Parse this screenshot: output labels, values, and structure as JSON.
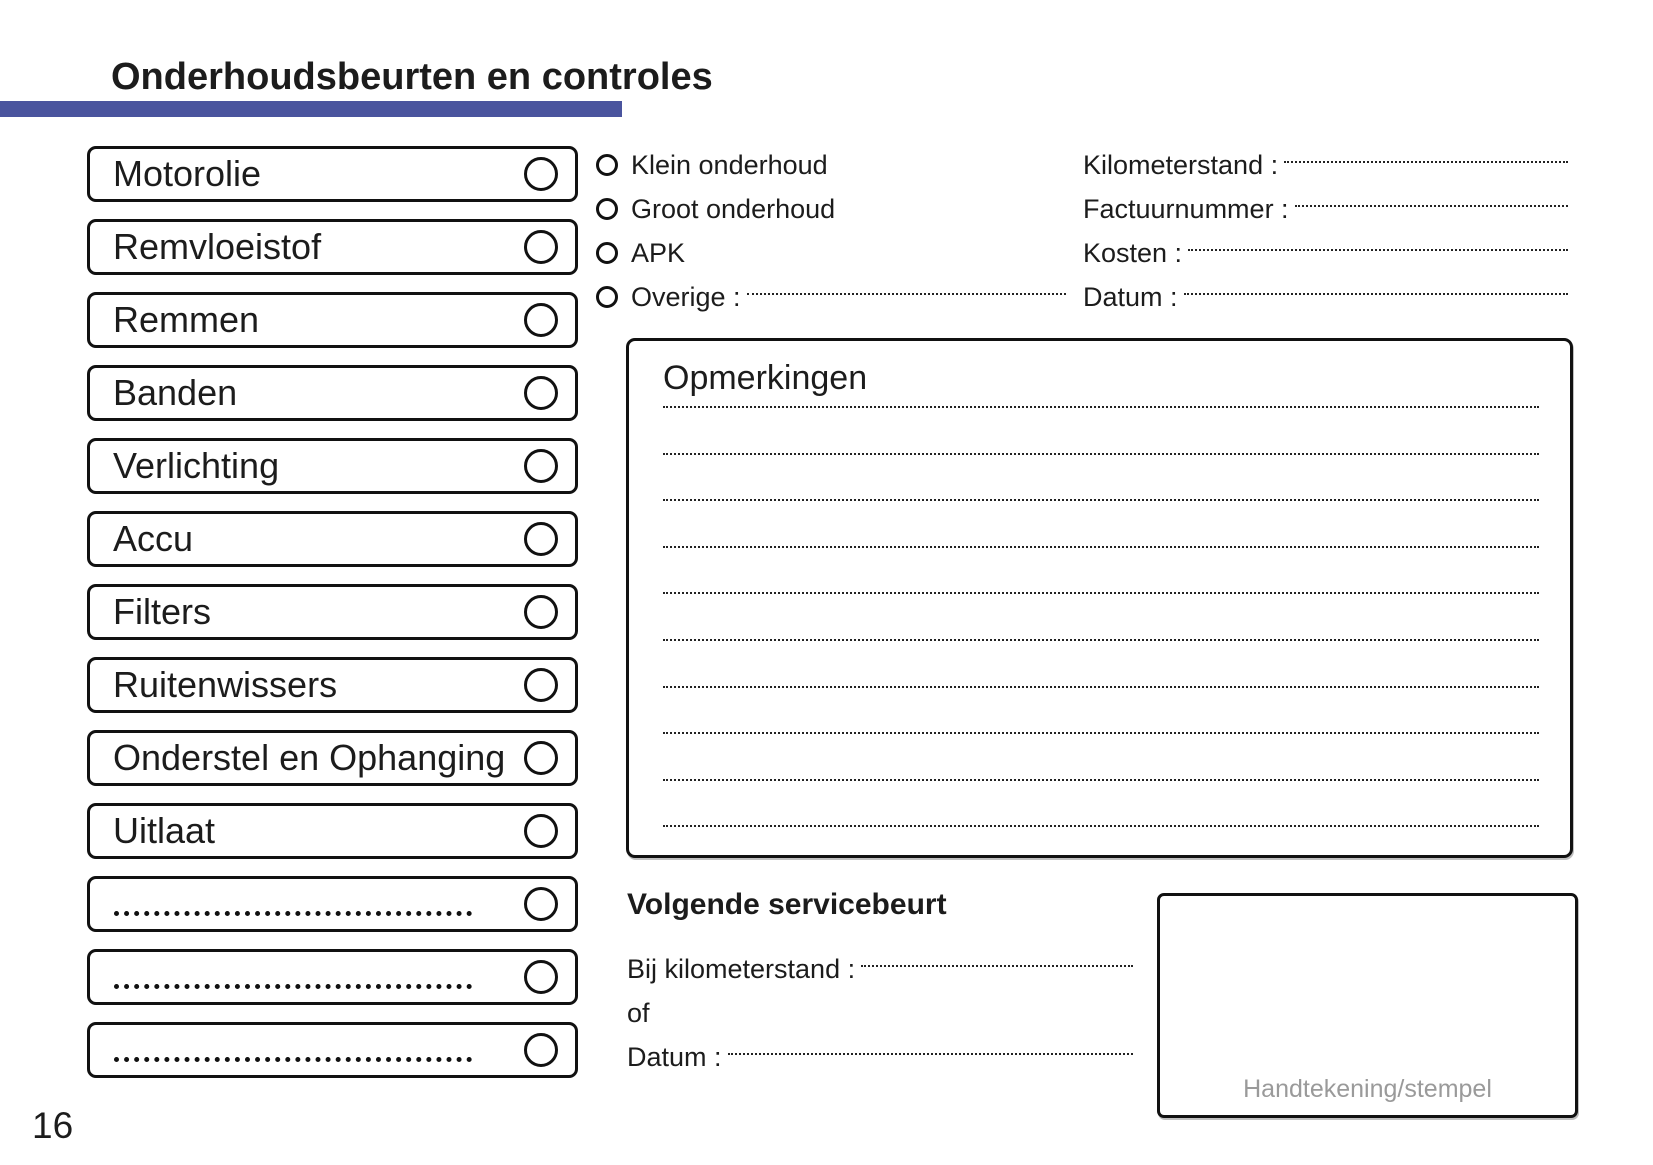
{
  "page": {
    "title": "Onderhoudsbeurten en controles",
    "page_number": "16",
    "accent_color": "#4A549E"
  },
  "checklist": {
    "items": [
      "Motorolie",
      "Remvloeistof",
      "Remmen",
      "Banden",
      "Verlichting",
      "Accu",
      "Filters",
      "Ruitenwissers",
      "Onderstel en Ophanging",
      "Uitlaat"
    ],
    "blank_dotted_rows": 3
  },
  "service_types": {
    "options": [
      "Klein onderhoud",
      "Groot onderhoud",
      "APK"
    ],
    "other_label": "Overige :"
  },
  "invoice_fields": [
    "Kilometerstand :",
    "Factuurnummer :",
    "Kosten :",
    "Datum :"
  ],
  "remarks": {
    "title": "Opmerkingen",
    "line_count": 10
  },
  "next_service": {
    "title": "Volgende servicebeurt",
    "km_label": "Bij kilometerstand :",
    "or_label": "of",
    "date_label": "Datum :"
  },
  "signature": {
    "label": "Handtekening/stempel"
  }
}
